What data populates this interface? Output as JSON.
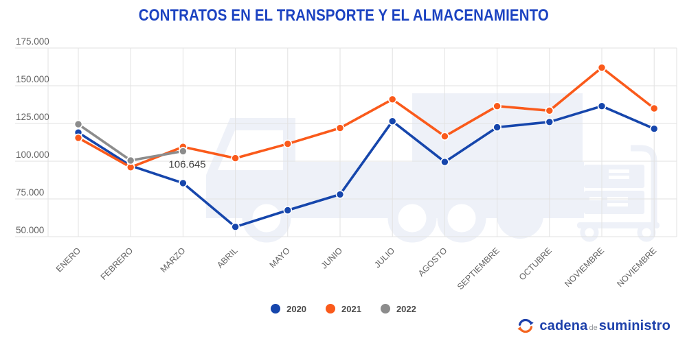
{
  "title": "CONTRATOS EN EL TRANSPORTE Y EL ALMACENAMIENTO",
  "colors": {
    "title": "#1b42c1",
    "series_2020": "#1646ac",
    "series_2021": "#fa5a1b",
    "series_2022": "#8c8c8c",
    "grid": "#e2e2e2",
    "axis_text": "#636363",
    "annotation_text": "#3d3d3d",
    "watermark": "#eef1f8",
    "logo_blue": "#1e41ab",
    "logo_orange": "#f4641e",
    "logo_de_gray": "#8f9398"
  },
  "chart_data": {
    "type": "line",
    "title": "CONTRATOS EN EL TRANSPORTE Y EL ALMACENAMIENTO",
    "categories": [
      "ENERO",
      "FEBRERO",
      "MARZO",
      "ABRIL",
      "MAYO",
      "JUNIO",
      "JULIO",
      "AGOSTO",
      "SEPTIEMBRE",
      "OCTUBRE",
      "NOVIEMBRE",
      "NOVIEMBRE"
    ],
    "series": [
      {
        "name": "2020",
        "color": "#1646ac",
        "values": [
          119000,
          97000,
          85500,
          56500,
          67500,
          78000,
          126500,
          99500,
          122500,
          126000,
          136500,
          121500
        ]
      },
      {
        "name": "2021",
        "color": "#fa5a1b",
        "values": [
          115500,
          96000,
          109500,
          102000,
          111500,
          122000,
          141000,
          116500,
          136500,
          133500,
          162000,
          135000
        ]
      },
      {
        "name": "2022",
        "color": "#8c8c8c",
        "values": [
          124500,
          100500,
          106645
        ]
      }
    ],
    "ylim": [
      50000,
      175000
    ],
    "ytick_values": [
      175000,
      150000,
      125000,
      100000,
      75000,
      50000
    ],
    "ytick_labels": [
      "175.000",
      "150.000",
      "125.000",
      "100.000",
      "75.000",
      "50.000"
    ],
    "grid": true,
    "legend_position": "bottom",
    "annotation": {
      "text": "106.645",
      "series": "2022",
      "index": 2
    }
  },
  "legend": {
    "items": [
      {
        "label": "2020",
        "color": "#1646ac"
      },
      {
        "label": "2021",
        "color": "#fa5a1b"
      },
      {
        "label": "2022",
        "color": "#8c8c8c"
      }
    ]
  },
  "logo": {
    "cadena": "cadena",
    "de": "de",
    "suministro": "suministro"
  }
}
